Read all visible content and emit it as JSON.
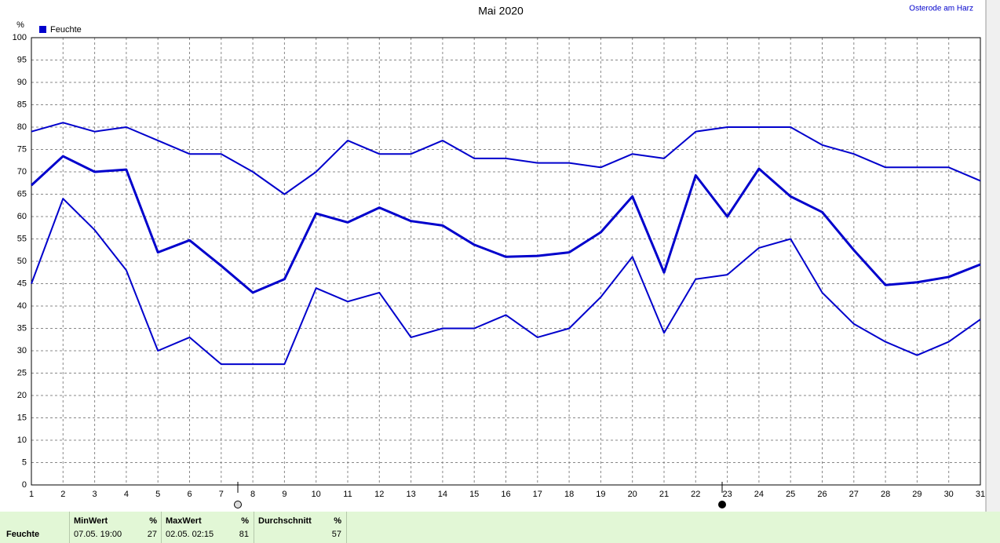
{
  "chart_data": {
    "type": "line",
    "title": "Mai 2020",
    "location": "Osterode am Harz",
    "y_unit": "%",
    "legend": {
      "label": "Feuchte",
      "color": "#0000cc"
    },
    "x": [
      1,
      2,
      3,
      4,
      5,
      6,
      7,
      8,
      9,
      10,
      11,
      12,
      13,
      14,
      15,
      16,
      17,
      18,
      19,
      20,
      21,
      22,
      23,
      24,
      25,
      26,
      27,
      28,
      29,
      30,
      31
    ],
    "xlim": [
      1,
      31
    ],
    "xticks": [
      1,
      2,
      3,
      4,
      5,
      6,
      7,
      8,
      9,
      10,
      11,
      12,
      13,
      14,
      15,
      16,
      17,
      18,
      19,
      20,
      21,
      22,
      23,
      24,
      25,
      26,
      27,
      28,
      29,
      30,
      31
    ],
    "ylim": [
      0,
      100
    ],
    "yticks": [
      0,
      5,
      10,
      15,
      20,
      25,
      30,
      35,
      40,
      45,
      50,
      55,
      60,
      65,
      70,
      75,
      80,
      85,
      90,
      95,
      100
    ],
    "grid": true,
    "series": [
      {
        "color": "#0000cc",
        "values": [
          79,
          81,
          79,
          80,
          77,
          74,
          74,
          70,
          65,
          70,
          77,
          74,
          74,
          77,
          73,
          73,
          72,
          72,
          71,
          74,
          73,
          79,
          80,
          80,
          80,
          76,
          74,
          71,
          71,
          71,
          68
        ]
      },
      {
        "color": "#0000cc",
        "values": [
          67,
          73.5,
          70,
          70.5,
          52,
          54.7,
          49,
          43,
          46,
          60.7,
          58.7,
          62,
          59,
          58,
          53.7,
          51,
          51.2,
          52,
          56.5,
          64.5,
          47.5,
          69.2,
          60,
          70.7,
          64.5,
          61,
          52.5,
          44.7,
          45.3,
          46.5,
          49.3
        ]
      },
      {
        "color": "#0000cc",
        "values": [
          45,
          64,
          57,
          48,
          30,
          33,
          27,
          27,
          27,
          44,
          41,
          43,
          33,
          35,
          35,
          38,
          33,
          35,
          42,
          51,
          34,
          46,
          47,
          53,
          55,
          43,
          36,
          32,
          29,
          32,
          37
        ]
      }
    ]
  },
  "summary": {
    "row_label": "Feuchte",
    "columns": [
      {
        "header": "MinWert",
        "unit": "%",
        "time": "07.05.  19:00",
        "value": 27
      },
      {
        "header": "MaxWert",
        "unit": "%",
        "time": "02.05.  02:15",
        "value": 81
      },
      {
        "header": "Durchschnitt",
        "unit": "%",
        "time": "",
        "value": 57
      }
    ]
  }
}
